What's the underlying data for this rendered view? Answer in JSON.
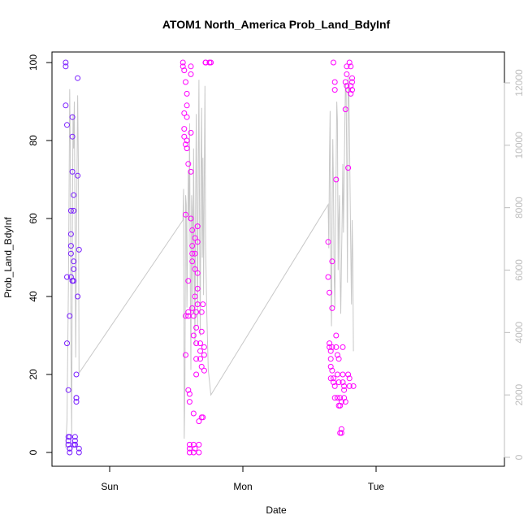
{
  "chart_data": {
    "type": "scatter",
    "title": "ATOM1 North_America Prob_Land_BdyInf",
    "xlabel": "Date",
    "ylabel": "Prob_Land_BdyInf",
    "x_ticks": [
      "Sun",
      "Mon",
      "Tue"
    ],
    "y_ticks": [
      "0",
      "20",
      "40",
      "60",
      "80",
      "100"
    ],
    "y2_ticks": [
      "0",
      "2000",
      "4000",
      "6000",
      "8000",
      "10000",
      "12000"
    ],
    "ylim": [
      0,
      100
    ],
    "y2lim": [
      0,
      12000
    ],
    "xlim_days": [
      -0.38,
      1.96
    ],
    "grid": false,
    "legend": "none",
    "colors": {
      "early": "#7a1fff",
      "late": "#ff00ff",
      "secondary_line": "#c8c8c8",
      "right_axis": "#bdbdbd",
      "frame": "#000000"
    },
    "series": [
      {
        "color_key": "early",
        "x": [
          -0.33,
          -0.33,
          -0.33,
          -0.32,
          -0.32,
          -0.32,
          -0.31,
          -0.31,
          -0.31,
          -0.31,
          -0.3,
          -0.3,
          -0.3,
          -0.3,
          -0.3,
          -0.29,
          -0.29,
          -0.29,
          -0.29,
          -0.29,
          -0.28,
          -0.28,
          -0.28,
          -0.28,
          -0.28,
          -0.27,
          -0.27,
          -0.27,
          -0.27,
          -0.27,
          -0.27,
          -0.26,
          -0.26,
          -0.26,
          -0.26,
          -0.25,
          -0.25,
          -0.25,
          -0.25,
          -0.24,
          -0.24,
          -0.24,
          -0.23,
          -0.23,
          -0.23
        ],
        "y": [
          100,
          99,
          89,
          84,
          45,
          28,
          16,
          4,
          3,
          2,
          1,
          0,
          1,
          4,
          35,
          45,
          53,
          51,
          62,
          56,
          44,
          44,
          72,
          86,
          81,
          66,
          62,
          49,
          47,
          44,
          2,
          2,
          4,
          3,
          2,
          14,
          13,
          20,
          14,
          40,
          71,
          96,
          0,
          1,
          52
        ]
      },
      {
        "color_key": "late",
        "x": [
          0.55,
          0.55,
          0.56,
          0.56,
          0.56,
          0.56,
          0.57,
          0.57,
          0.57,
          0.57,
          0.57,
          0.58,
          0.58,
          0.58,
          0.58,
          0.58,
          0.59,
          0.59,
          0.59,
          0.59,
          0.59,
          0.6,
          0.6,
          0.6,
          0.6,
          0.6,
          0.61,
          0.61,
          0.61,
          0.61,
          0.61,
          0.62,
          0.62,
          0.62,
          0.62,
          0.62,
          0.63,
          0.63,
          0.63,
          0.63,
          0.63,
          0.64,
          0.64,
          0.64,
          0.64,
          0.64,
          0.65,
          0.65,
          0.65,
          0.65,
          0.65,
          0.66,
          0.66,
          0.66,
          0.66,
          0.66,
          0.67,
          0.67,
          0.67,
          0.68,
          0.68,
          0.68,
          0.69,
          0.69,
          0.69,
          0.69,
          0.7,
          0.7,
          0.71,
          0.71,
          0.71,
          0.72,
          0.72,
          0.72,
          0.75,
          0.75,
          0.76
        ],
        "y": [
          100,
          99,
          98,
          87,
          83,
          81,
          79,
          61,
          35,
          25,
          95,
          92,
          89,
          86,
          80,
          78,
          74,
          35,
          44,
          36,
          16,
          13,
          1,
          0,
          2,
          15,
          99,
          97,
          82,
          72,
          60,
          57,
          53,
          49,
          51,
          37,
          35,
          30,
          10,
          2,
          0,
          1,
          55,
          51,
          47,
          40,
          36,
          32,
          28,
          24,
          20,
          58,
          54,
          46,
          42,
          38,
          8,
          2,
          0,
          26,
          28,
          24,
          22,
          31,
          36,
          9,
          9,
          38,
          27,
          25,
          21,
          100,
          100,
          100,
          100,
          100,
          100
        ]
      },
      {
        "color_key": "late",
        "x": [
          1.64,
          1.64,
          1.65,
          1.65,
          1.65,
          1.66,
          1.66,
          1.66,
          1.66,
          1.67,
          1.67,
          1.67,
          1.67,
          1.68,
          1.68,
          1.68,
          1.69,
          1.69,
          1.69,
          1.69,
          1.7,
          1.7,
          1.7,
          1.71,
          1.71,
          1.71,
          1.72,
          1.72,
          1.72,
          1.73,
          1.73,
          1.73,
          1.74,
          1.74,
          1.74,
          1.75,
          1.75,
          1.75,
          1.76,
          1.76,
          1.76,
          1.77,
          1.77,
          1.77,
          1.78,
          1.78,
          1.78,
          1.79,
          1.79,
          1.79,
          1.8,
          1.8,
          1.8,
          1.81,
          1.81,
          1.81,
          1.82,
          1.82,
          1.82,
          1.83
        ],
        "y": [
          54,
          45,
          41,
          28,
          27,
          24,
          26,
          22,
          19,
          49,
          37,
          27,
          21,
          19,
          18,
          100,
          95,
          93,
          14,
          17,
          70,
          30,
          27,
          25,
          20,
          14,
          12,
          18,
          24,
          14,
          12,
          5,
          6,
          5,
          13,
          20,
          27,
          18,
          16,
          14,
          17,
          13,
          88,
          95,
          97,
          99,
          94,
          93,
          73,
          20,
          17,
          19,
          100,
          99,
          92,
          94,
          96,
          95,
          93,
          17
        ]
      }
    ],
    "secondary_line": {
      "axis": "right",
      "x": [
        -0.33,
        -0.32,
        -0.31,
        -0.305,
        -0.3,
        -0.295,
        -0.29,
        -0.285,
        -0.28,
        -0.275,
        -0.27,
        -0.265,
        -0.26,
        -0.255,
        -0.25,
        -0.245,
        -0.24,
        -0.235,
        -0.23,
        0.55,
        0.555,
        0.56,
        0.565,
        0.57,
        0.575,
        0.58,
        0.585,
        0.59,
        0.595,
        0.6,
        0.605,
        0.61,
        0.615,
        0.62,
        0.625,
        0.63,
        0.635,
        0.64,
        0.645,
        0.65,
        0.655,
        0.66,
        0.665,
        0.67,
        0.675,
        0.68,
        0.685,
        0.69,
        0.695,
        0.7,
        0.705,
        0.71,
        0.715,
        0.72,
        0.73,
        0.74,
        0.76,
        1.64,
        1.645,
        1.65,
        1.655,
        1.66,
        1.665,
        1.67,
        1.675,
        1.68,
        1.685,
        1.69,
        1.695,
        1.7,
        1.705,
        1.71,
        1.715,
        1.72,
        1.725,
        1.73,
        1.735,
        1.74,
        1.745,
        1.75,
        1.755,
        1.76,
        1.765,
        1.77,
        1.775,
        1.78,
        1.785,
        1.79,
        1.795,
        1.8,
        1.805,
        1.81,
        1.815,
        1.82,
        1.825,
        1.83
      ],
      "y": [
        300,
        1200,
        5400,
        8300,
        11800,
        9800,
        3200,
        700,
        7200,
        11000,
        9900,
        11400,
        7300,
        3200,
        6400,
        9100,
        11600,
        9400,
        2700,
        7600,
        8600,
        600,
        2400,
        8400,
        8100,
        4800,
        6500,
        9200,
        7600,
        10700,
        5700,
        2800,
        8400,
        7900,
        4600,
        9900,
        6800,
        3600,
        8000,
        11000,
        7800,
        4200,
        9400,
        12100,
        7300,
        3900,
        8900,
        11200,
        6400,
        9600,
        5200,
        8700,
        11900,
        6800,
        4500,
        2800,
        2000,
        8100,
        6700,
        9600,
        11100,
        5800,
        4200,
        7800,
        10200,
        8800,
        6000,
        4800,
        7200,
        9200,
        11400,
        10800,
        6000,
        7600,
        8400,
        5900,
        4600,
        6300,
        7600,
        9400,
        7200,
        8700,
        10600,
        12000,
        11700,
        9300,
        5600,
        12200,
        11900,
        10400,
        8500,
        6700,
        4900,
        7600,
        6400,
        3400
      ]
    }
  }
}
